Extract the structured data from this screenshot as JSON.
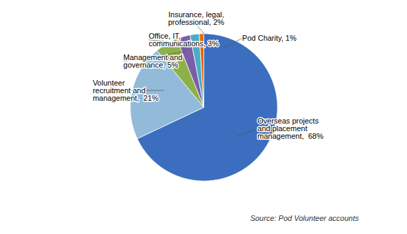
{
  "chart_data": {
    "type": "pie",
    "categories": [
      "Overseas projects\nand placement\nmanagement,  68%",
      "Volunteer\nrecruitment and\nmanagement,  21%",
      "Management and\ngovernance, 5%",
      "Office, IT,\ncommunications, 3%",
      "Insurance, legal,\nprofessional, 2%",
      "Pod Charity, 1%"
    ],
    "values": [
      68,
      21,
      5,
      3,
      2,
      1
    ],
    "colors": [
      "#3B6EBE",
      "#92BBDA",
      "#8DB04A",
      "#7B5EA7",
      "#4BACC6",
      "#E36C0A"
    ],
    "caption": "Source: Pod Volunteer accounts"
  }
}
